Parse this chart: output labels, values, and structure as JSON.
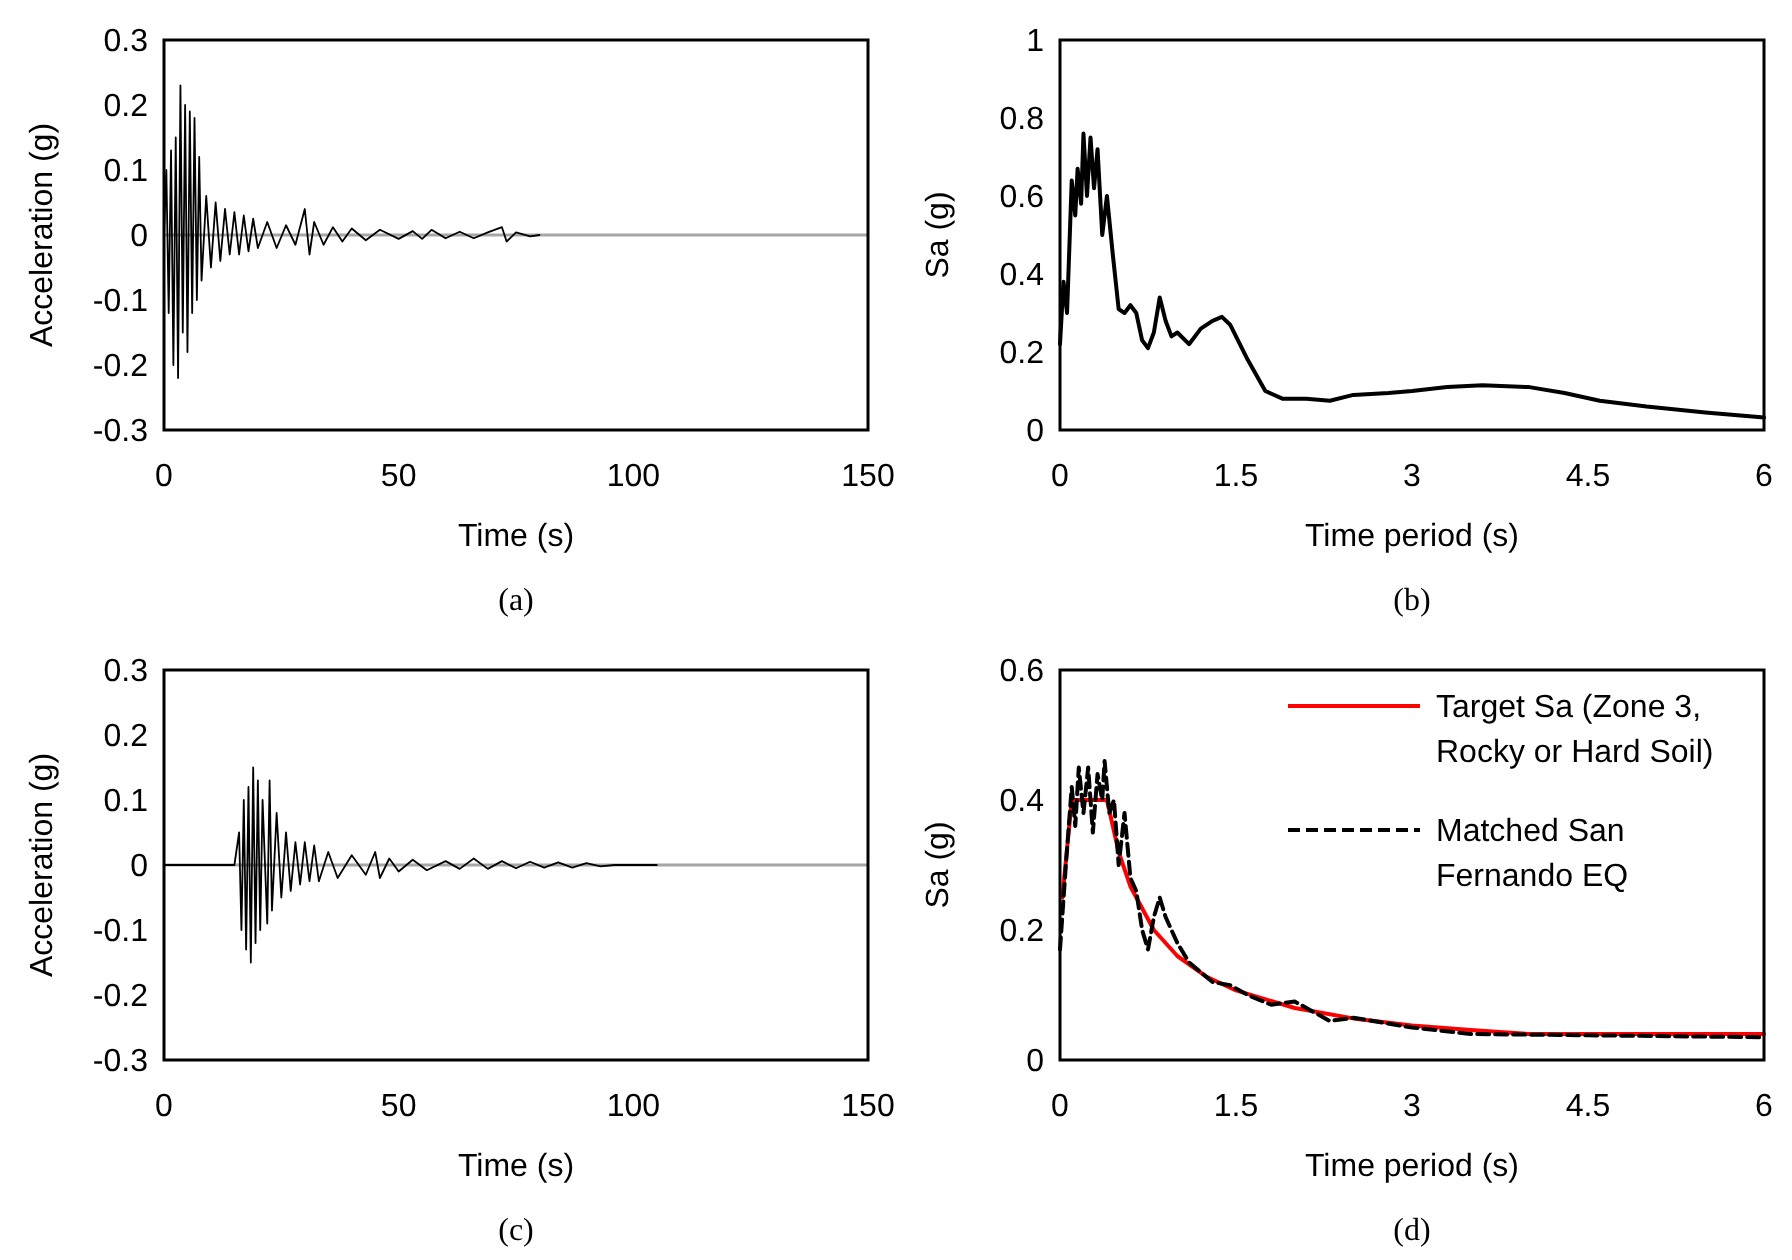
{
  "chart_data": [
    {
      "type": "line",
      "xlabel": "Time (s)",
      "ylabel": "Acceleration (g)",
      "annotations": [
        "(a)"
      ],
      "ref_lines": [
        {
          "axis": "y",
          "value": 0,
          "color": "#a6a6a6"
        }
      ],
      "xlim": [
        0,
        150
      ],
      "xticks": [
        0,
        50,
        100,
        150
      ],
      "ylim": [
        -0.3,
        0.3
      ],
      "yticks": [
        -0.3,
        -0.2,
        -0.1,
        0,
        0.1,
        0.2,
        0.3
      ],
      "grid": false,
      "legend": false,
      "series": [
        {
          "color": "#000000",
          "x": [
            0,
            0.5,
            1,
            1.5,
            2,
            2.5,
            3,
            3.5,
            4,
            4.5,
            5,
            5.5,
            6,
            6.5,
            7,
            7.5,
            8,
            9,
            10,
            11,
            12,
            13,
            14,
            15,
            16,
            17,
            18,
            19,
            20,
            22,
            24,
            26,
            28,
            30,
            31,
            32,
            34,
            36,
            38,
            40,
            43,
            46,
            50,
            53,
            55,
            57,
            60,
            63,
            66,
            69,
            72,
            73,
            75,
            78,
            80
          ],
          "values": [
            0,
            0.1,
            -0.12,
            0.13,
            -0.2,
            0.15,
            -0.22,
            0.23,
            -0.15,
            0.2,
            -0.18,
            0.19,
            -0.12,
            0.18,
            -0.1,
            0.12,
            -0.07,
            0.06,
            -0.05,
            0.05,
            -0.04,
            0.04,
            -0.03,
            0.035,
            -0.03,
            0.03,
            -0.025,
            0.025,
            -0.02,
            0.02,
            -0.02,
            0.015,
            -0.015,
            0.04,
            -0.03,
            0.02,
            -0.015,
            0.012,
            -0.01,
            0.01,
            -0.008,
            0.008,
            -0.006,
            0.006,
            -0.006,
            0.008,
            -0.005,
            0.005,
            -0.005,
            0.004,
            0.012,
            -0.01,
            0.004,
            -0.002,
            0
          ]
        }
      ]
    },
    {
      "type": "line",
      "xlabel": "Time period (s)",
      "ylabel": "Sa (g)",
      "annotations": [
        "(b)"
      ],
      "xlim": [
        0,
        6
      ],
      "xticks": [
        0,
        1.5,
        3,
        4.5,
        6
      ],
      "ylim": [
        0,
        1
      ],
      "yticks": [
        0,
        0.2,
        0.4,
        0.6,
        0.8,
        1
      ],
      "grid": false,
      "legend": false,
      "series": [
        {
          "color": "#000000",
          "x": [
            0,
            0.03,
            0.06,
            0.1,
            0.13,
            0.15,
            0.18,
            0.2,
            0.23,
            0.26,
            0.29,
            0.32,
            0.36,
            0.4,
            0.45,
            0.5,
            0.55,
            0.6,
            0.65,
            0.7,
            0.75,
            0.8,
            0.85,
            0.9,
            0.95,
            1.0,
            1.1,
            1.2,
            1.3,
            1.38,
            1.45,
            1.6,
            1.75,
            1.9,
            2.1,
            2.3,
            2.5,
            2.8,
            3.0,
            3.3,
            3.6,
            4.0,
            4.3,
            4.6,
            5.0,
            5.5,
            6.0
          ],
          "values": [
            0.22,
            0.38,
            0.3,
            0.64,
            0.55,
            0.67,
            0.58,
            0.76,
            0.6,
            0.75,
            0.62,
            0.72,
            0.5,
            0.6,
            0.45,
            0.31,
            0.3,
            0.32,
            0.3,
            0.23,
            0.21,
            0.25,
            0.34,
            0.28,
            0.24,
            0.25,
            0.22,
            0.26,
            0.28,
            0.29,
            0.27,
            0.18,
            0.1,
            0.08,
            0.08,
            0.075,
            0.09,
            0.095,
            0.1,
            0.11,
            0.115,
            0.11,
            0.095,
            0.075,
            0.06,
            0.045,
            0.032
          ]
        }
      ]
    },
    {
      "type": "line",
      "xlabel": "Time (s)",
      "ylabel": "Acceleration (g)",
      "annotations": [
        "(c)"
      ],
      "ref_lines": [
        {
          "axis": "y",
          "value": 0,
          "color": "#a6a6a6"
        }
      ],
      "xlim": [
        0,
        150
      ],
      "xticks": [
        0,
        50,
        100,
        150
      ],
      "ylim": [
        -0.3,
        0.3
      ],
      "yticks": [
        -0.3,
        -0.2,
        -0.1,
        0,
        0.1,
        0.2,
        0.3
      ],
      "grid": false,
      "legend": false,
      "series": [
        {
          "color": "#000000",
          "x": [
            0,
            10,
            15,
            16,
            16.5,
            17,
            17.5,
            18,
            18.5,
            19,
            19.5,
            20,
            20.5,
            21,
            22,
            22.5,
            23,
            24,
            25,
            26,
            27,
            28,
            29,
            30,
            31,
            32,
            33,
            35,
            37,
            40,
            43,
            45,
            46,
            48,
            50,
            53,
            56,
            60,
            63,
            66,
            69,
            72,
            75,
            78,
            81,
            84,
            87,
            90,
            93,
            96,
            105
          ],
          "values": [
            0,
            0,
            0,
            0.05,
            -0.1,
            0.1,
            -0.13,
            0.12,
            -0.15,
            0.15,
            -0.12,
            0.13,
            -0.1,
            0.1,
            -0.09,
            0.13,
            -0.07,
            0.08,
            -0.05,
            0.05,
            -0.04,
            0.035,
            -0.03,
            0.035,
            -0.025,
            0.03,
            -0.025,
            0.02,
            -0.02,
            0.015,
            -0.015,
            0.02,
            -0.02,
            0.01,
            -0.01,
            0.008,
            -0.008,
            0.006,
            -0.006,
            0.01,
            -0.006,
            0.006,
            -0.005,
            0.005,
            -0.004,
            0.004,
            -0.004,
            0.003,
            -0.002,
            0,
            0
          ]
        }
      ]
    },
    {
      "type": "line",
      "xlabel": "Time period (s)",
      "ylabel": "Sa (g)",
      "annotations": [
        "(d)"
      ],
      "xlim": [
        0,
        6
      ],
      "xticks": [
        0,
        1.5,
        3,
        4.5,
        6
      ],
      "ylim": [
        0,
        0.6
      ],
      "yticks": [
        0,
        0.2,
        0.4,
        0.6
      ],
      "grid": false,
      "legend": "top right",
      "series": [
        {
          "name": "Target Sa (Zone 3, Rocky or Hard Soil)",
          "color": "#ff0000",
          "line_style": "solid",
          "x": [
            0.02,
            0.1,
            0.4,
            0.5,
            0.6,
            0.8,
            1,
            1.25,
            1.5,
            2,
            2.5,
            3,
            3.5,
            4,
            6
          ],
          "values": [
            0.25,
            0.4,
            0.4,
            0.32,
            0.267,
            0.2,
            0.16,
            0.128,
            0.107,
            0.08,
            0.064,
            0.053,
            0.046,
            0.04,
            0.04
          ]
        },
        {
          "name": "Matched San Fernando EQ",
          "color": "#000000",
          "line_style": "dashed",
          "x": [
            0,
            0.05,
            0.1,
            0.13,
            0.16,
            0.2,
            0.24,
            0.28,
            0.32,
            0.36,
            0.38,
            0.42,
            0.46,
            0.5,
            0.55,
            0.6,
            0.65,
            0.7,
            0.75,
            0.8,
            0.85,
            0.9,
            1.0,
            1.1,
            1.3,
            1.45,
            1.6,
            1.8,
            2.0,
            2.2,
            2.3,
            2.5,
            3.0,
            3.5,
            4.5,
            6
          ],
          "values": [
            0.17,
            0.3,
            0.42,
            0.36,
            0.45,
            0.38,
            0.45,
            0.35,
            0.44,
            0.4,
            0.46,
            0.38,
            0.4,
            0.3,
            0.38,
            0.28,
            0.26,
            0.2,
            0.17,
            0.22,
            0.25,
            0.22,
            0.18,
            0.15,
            0.12,
            0.115,
            0.1,
            0.085,
            0.09,
            0.07,
            0.06,
            0.065,
            0.05,
            0.04,
            0.038,
            0.035
          ]
        }
      ]
    }
  ]
}
